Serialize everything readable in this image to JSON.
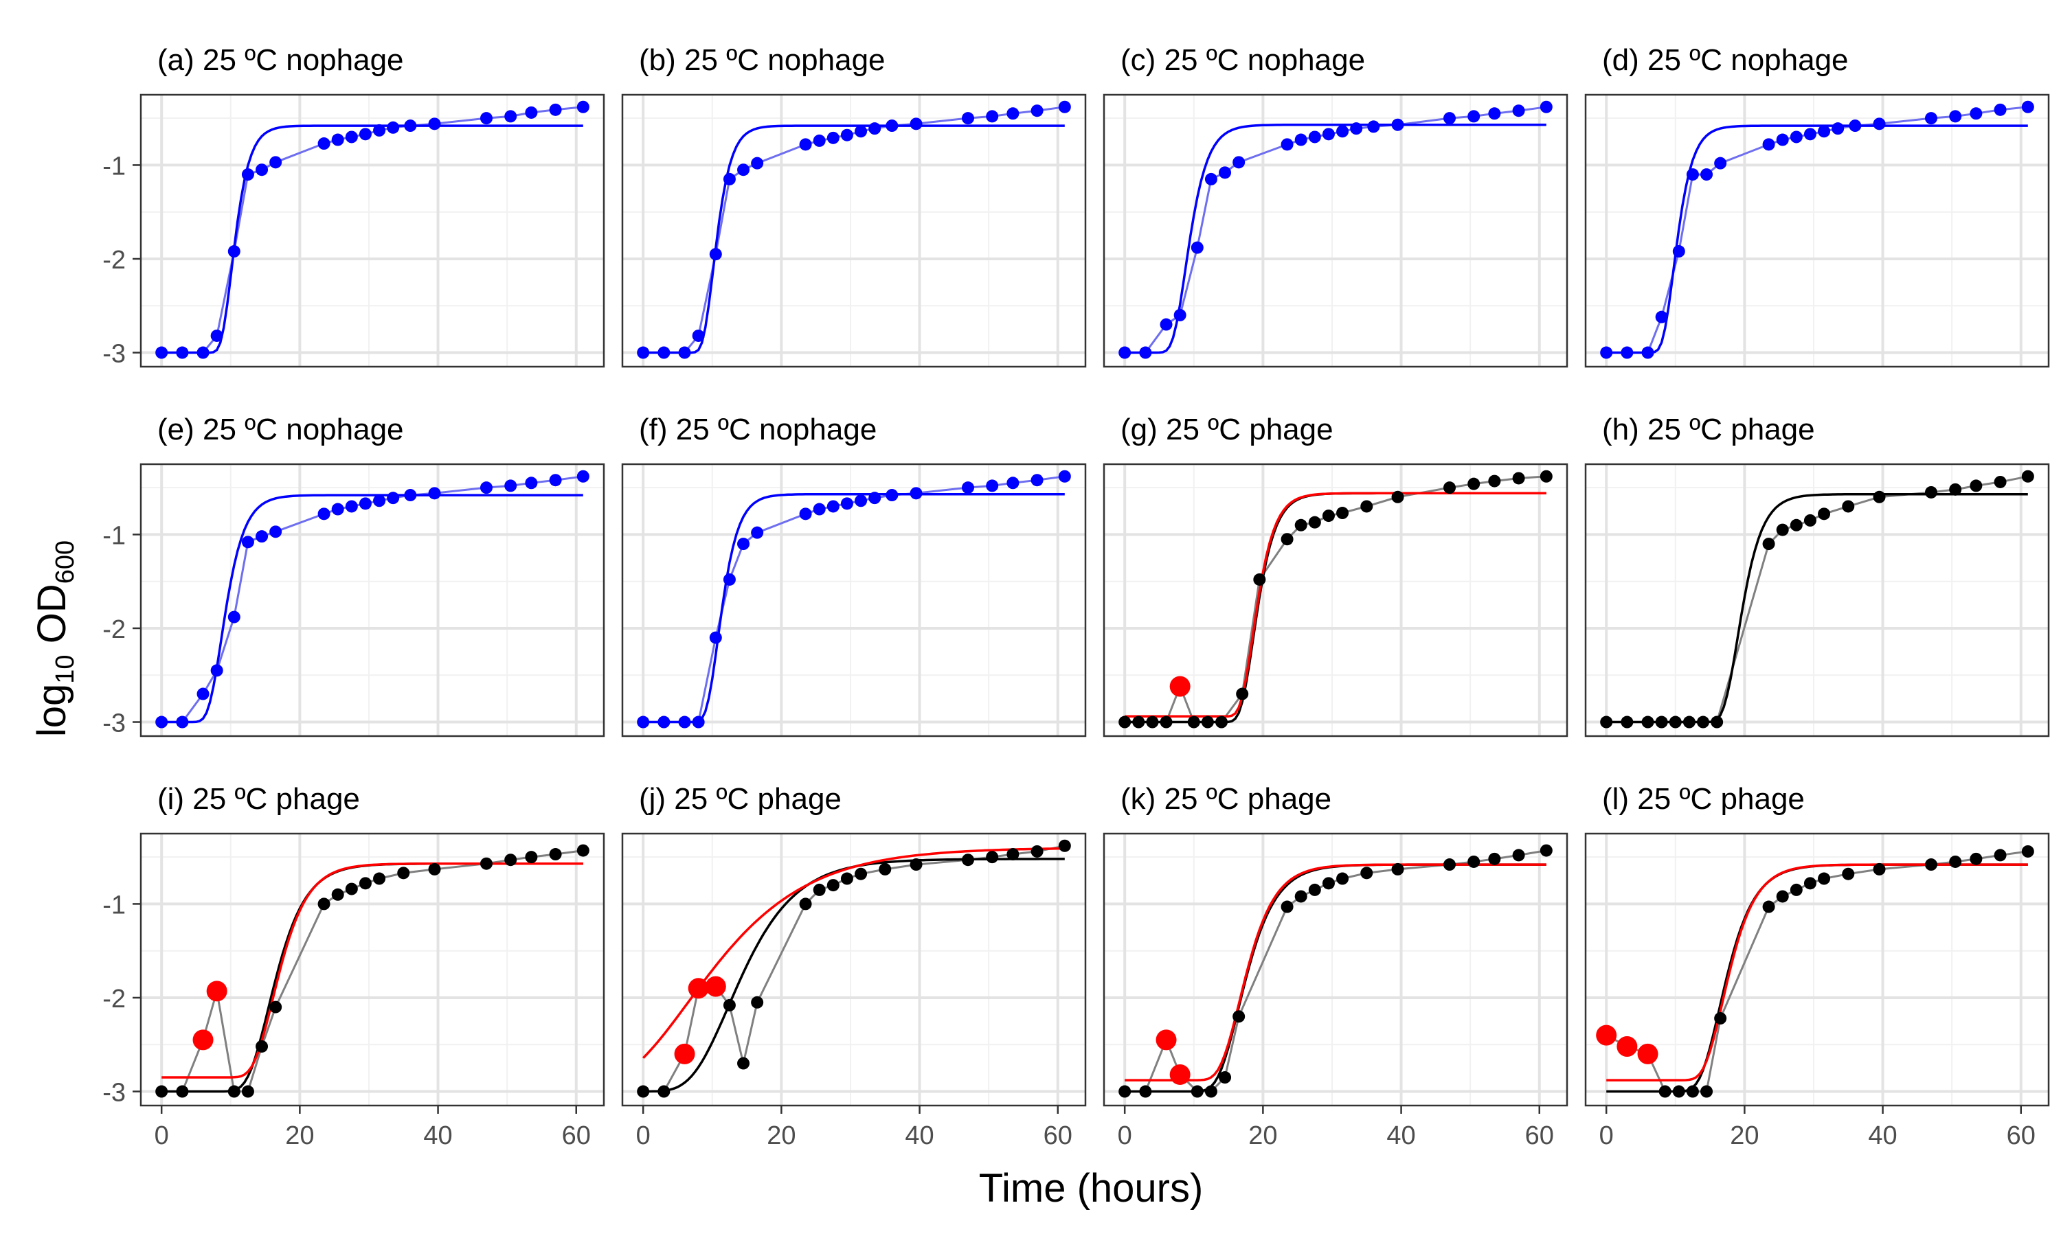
{
  "figure": {
    "xlabel": "Time (hours)",
    "ylabel_main": "log",
    "ylabel_sub": "10",
    "ylabel_tail": " OD",
    "ylabel_sub2": "600"
  },
  "colors": {
    "blue_points": "#0000ff",
    "blue_connector": "#6e6ef0",
    "black_points": "#000000",
    "grey_connector": "#808080",
    "red_outlier": "#ff0000",
    "red_fit": "#ff0000",
    "black_fit": "#000000",
    "grid_major": "#e3e3e3",
    "grid_minor": "#f1f1f1"
  },
  "chart_data": {
    "type": "scatter",
    "layout": "4 columns x 3 rows facet grid",
    "xlim": [
      -3,
      64
    ],
    "ylim": [
      -3.15,
      -0.25
    ],
    "xticks": [
      0,
      20,
      40,
      60
    ],
    "yticks": [
      -3,
      -2,
      -1
    ],
    "ytick_labels": [
      "-3",
      "-2",
      "-1"
    ],
    "grid": true,
    "panels": [
      {
        "title": "(a) 25 ºC nophage",
        "style": "nophage",
        "points": [
          [
            0,
            -3.0
          ],
          [
            3,
            -3.0
          ],
          [
            6,
            -3.0
          ],
          [
            8,
            -2.82
          ],
          [
            10.5,
            -1.92
          ],
          [
            12.5,
            -1.1
          ],
          [
            14.5,
            -1.05
          ],
          [
            16.5,
            -0.97
          ],
          [
            23.5,
            -0.77
          ],
          [
            25.5,
            -0.73
          ],
          [
            27.5,
            -0.7
          ],
          [
            29.5,
            -0.67
          ],
          [
            31.5,
            -0.63
          ],
          [
            33.5,
            -0.6
          ],
          [
            36,
            -0.58
          ],
          [
            39.5,
            -0.56
          ],
          [
            47,
            -0.5
          ],
          [
            50.5,
            -0.48
          ],
          [
            53.5,
            -0.44
          ],
          [
            57,
            -0.41
          ],
          [
            61,
            -0.38
          ]
        ],
        "outliers": [],
        "black_fit": null,
        "blue_fit": {
          "A": -0.58,
          "y0": -3.0,
          "mu": 0.62,
          "lag": 8.7
        }
      },
      {
        "title": "(b) 25 ºC nophage",
        "style": "nophage",
        "points": [
          [
            0,
            -3.0
          ],
          [
            3,
            -3.0
          ],
          [
            6,
            -3.0
          ],
          [
            8,
            -2.82
          ],
          [
            10.5,
            -1.95
          ],
          [
            12.5,
            -1.15
          ],
          [
            14.5,
            -1.05
          ],
          [
            16.5,
            -0.98
          ],
          [
            23.5,
            -0.78
          ],
          [
            25.5,
            -0.74
          ],
          [
            27.5,
            -0.71
          ],
          [
            29.5,
            -0.68
          ],
          [
            31.5,
            -0.64
          ],
          [
            33.5,
            -0.61
          ],
          [
            36,
            -0.58
          ],
          [
            39.5,
            -0.56
          ],
          [
            47,
            -0.5
          ],
          [
            50.5,
            -0.48
          ],
          [
            53.5,
            -0.45
          ],
          [
            57,
            -0.42
          ],
          [
            61,
            -0.38
          ]
        ],
        "outliers": [],
        "black_fit": null,
        "blue_fit": {
          "A": -0.58,
          "y0": -3.0,
          "mu": 0.62,
          "lag": 8.7
        }
      },
      {
        "title": "(c) 25 ºC nophage",
        "style": "nophage",
        "points": [
          [
            0,
            -3.0
          ],
          [
            3,
            -3.0
          ],
          [
            6,
            -2.7
          ],
          [
            8,
            -2.6
          ],
          [
            10.5,
            -1.88
          ],
          [
            12.5,
            -1.15
          ],
          [
            14.5,
            -1.08
          ],
          [
            16.5,
            -0.97
          ],
          [
            23.5,
            -0.78
          ],
          [
            25.5,
            -0.73
          ],
          [
            27.5,
            -0.7
          ],
          [
            29.5,
            -0.67
          ],
          [
            31.5,
            -0.64
          ],
          [
            33.5,
            -0.61
          ],
          [
            36,
            -0.59
          ],
          [
            39.5,
            -0.57
          ],
          [
            47,
            -0.5
          ],
          [
            50.5,
            -0.48
          ],
          [
            53.5,
            -0.45
          ],
          [
            57,
            -0.42
          ],
          [
            61,
            -0.38
          ]
        ],
        "outliers": [],
        "black_fit": null,
        "blue_fit": {
          "A": -0.57,
          "y0": -3.0,
          "mu": 0.5,
          "lag": 7.0
        }
      },
      {
        "title": "(d) 25 ºC nophage",
        "style": "nophage",
        "points": [
          [
            0,
            -3.0
          ],
          [
            3,
            -3.0
          ],
          [
            6,
            -3.0
          ],
          [
            8,
            -2.62
          ],
          [
            10.5,
            -1.92
          ],
          [
            12.5,
            -1.1
          ],
          [
            14.5,
            -1.1
          ],
          [
            16.5,
            -0.98
          ],
          [
            23.5,
            -0.78
          ],
          [
            25.5,
            -0.73
          ],
          [
            27.5,
            -0.7
          ],
          [
            29.5,
            -0.67
          ],
          [
            31.5,
            -0.64
          ],
          [
            33.5,
            -0.61
          ],
          [
            36,
            -0.58
          ],
          [
            39.5,
            -0.56
          ],
          [
            47,
            -0.5
          ],
          [
            50.5,
            -0.48
          ],
          [
            53.5,
            -0.45
          ],
          [
            57,
            -0.41
          ],
          [
            61,
            -0.38
          ]
        ],
        "outliers": [],
        "black_fit": null,
        "blue_fit": {
          "A": -0.58,
          "y0": -3.0,
          "mu": 0.58,
          "lag": 8.2
        }
      },
      {
        "title": "(e) 25 ºC nophage",
        "style": "nophage",
        "points": [
          [
            0,
            -3.0
          ],
          [
            3,
            -3.0
          ],
          [
            6,
            -2.7
          ],
          [
            8,
            -2.45
          ],
          [
            10.5,
            -1.88
          ],
          [
            12.5,
            -1.08
          ],
          [
            14.5,
            -1.02
          ],
          [
            16.5,
            -0.97
          ],
          [
            23.5,
            -0.78
          ],
          [
            25.5,
            -0.73
          ],
          [
            27.5,
            -0.7
          ],
          [
            29.5,
            -0.67
          ],
          [
            31.5,
            -0.64
          ],
          [
            33.5,
            -0.61
          ],
          [
            36,
            -0.58
          ],
          [
            39.5,
            -0.56
          ],
          [
            47,
            -0.5
          ],
          [
            50.5,
            -0.48
          ],
          [
            53.5,
            -0.45
          ],
          [
            57,
            -0.42
          ],
          [
            61,
            -0.38
          ]
        ],
        "outliers": [],
        "black_fit": null,
        "blue_fit": {
          "A": -0.58,
          "y0": -3.0,
          "mu": 0.48,
          "lag": 6.8
        }
      },
      {
        "title": "(f) 25 ºC nophage",
        "style": "nophage",
        "points": [
          [
            0,
            -3.0
          ],
          [
            3,
            -3.0
          ],
          [
            6,
            -3.0
          ],
          [
            8,
            -3.0
          ],
          [
            10.5,
            -2.1
          ],
          [
            12.5,
            -1.48
          ],
          [
            14.5,
            -1.1
          ],
          [
            16.5,
            -0.98
          ],
          [
            23.5,
            -0.78
          ],
          [
            25.5,
            -0.73
          ],
          [
            27.5,
            -0.7
          ],
          [
            29.5,
            -0.67
          ],
          [
            31.5,
            -0.64
          ],
          [
            33.5,
            -0.61
          ],
          [
            36,
            -0.58
          ],
          [
            39.5,
            -0.56
          ],
          [
            47,
            -0.5
          ],
          [
            50.5,
            -0.48
          ],
          [
            53.5,
            -0.45
          ],
          [
            57,
            -0.42
          ],
          [
            61,
            -0.38
          ]
        ],
        "outliers": [],
        "black_fit": null,
        "blue_fit": {
          "A": -0.57,
          "y0": -3.0,
          "mu": 0.55,
          "lag": 9.2
        }
      },
      {
        "title": "(g) 25 ºC phage",
        "style": "phage",
        "points": [
          [
            0,
            -3.0
          ],
          [
            2,
            -3.0
          ],
          [
            4,
            -3.0
          ],
          [
            6,
            -3.0
          ],
          [
            10,
            -3.0
          ],
          [
            12,
            -3.0
          ],
          [
            14,
            -3.0
          ],
          [
            17,
            -2.7
          ],
          [
            19.5,
            -1.48
          ],
          [
            23.5,
            -1.05
          ],
          [
            25.5,
            -0.9
          ],
          [
            27.5,
            -0.87
          ],
          [
            29.5,
            -0.8
          ],
          [
            31.5,
            -0.77
          ],
          [
            35,
            -0.7
          ],
          [
            39.5,
            -0.6
          ],
          [
            47,
            -0.5
          ],
          [
            50.5,
            -0.46
          ],
          [
            53.5,
            -0.43
          ],
          [
            57,
            -0.4
          ],
          [
            61,
            -0.38
          ]
        ],
        "outliers": [
          [
            8,
            -2.62
          ]
        ],
        "black_fit": {
          "A": -0.56,
          "y0": -3.0,
          "mu": 0.5,
          "lag": 16.8
        },
        "red_fit": {
          "A": -0.56,
          "y0": -2.94,
          "mu": 0.5,
          "lag": 16.8
        }
      },
      {
        "title": "(h) 25 ºC phage",
        "style": "phage",
        "points": [
          [
            0,
            -3.0
          ],
          [
            3,
            -3.0
          ],
          [
            6,
            -3.0
          ],
          [
            8,
            -3.0
          ],
          [
            10,
            -3.0
          ],
          [
            12,
            -3.0
          ],
          [
            14,
            -3.0
          ],
          [
            16,
            -3.0
          ],
          [
            23.5,
            -1.1
          ],
          [
            25.5,
            -0.95
          ],
          [
            27.5,
            -0.9
          ],
          [
            29.5,
            -0.85
          ],
          [
            31.5,
            -0.78
          ],
          [
            35,
            -0.7
          ],
          [
            39.5,
            -0.6
          ],
          [
            47,
            -0.55
          ],
          [
            50.5,
            -0.52
          ],
          [
            53.5,
            -0.48
          ],
          [
            57,
            -0.44
          ],
          [
            61,
            -0.38
          ]
        ],
        "outliers": [],
        "black_fit": {
          "A": -0.57,
          "y0": -3.0,
          "mu": 0.45,
          "lag": 17.0
        },
        "red_fit": null
      },
      {
        "title": "(i) 25 ºC phage",
        "style": "phage",
        "points": [
          [
            0,
            -3.0
          ],
          [
            3,
            -3.0
          ],
          [
            10.5,
            -3.0
          ],
          [
            12.5,
            -3.0
          ],
          [
            14.5,
            -2.52
          ],
          [
            16.5,
            -2.1
          ],
          [
            23.5,
            -1.0
          ],
          [
            25.5,
            -0.9
          ],
          [
            27.5,
            -0.84
          ],
          [
            29.5,
            -0.78
          ],
          [
            31.5,
            -0.73
          ],
          [
            35,
            -0.67
          ],
          [
            39.5,
            -0.63
          ],
          [
            47,
            -0.57
          ],
          [
            50.5,
            -0.53
          ],
          [
            53.5,
            -0.5
          ],
          [
            57,
            -0.47
          ],
          [
            61,
            -0.43
          ]
        ],
        "outliers": [
          [
            6,
            -2.45
          ],
          [
            8,
            -1.93
          ]
        ],
        "black_fit": {
          "A": -0.57,
          "y0": -3.0,
          "mu": 0.3,
          "lag": 12.5
        },
        "red_fit": {
          "A": -0.57,
          "y0": -2.85,
          "mu": 0.3,
          "lag": 13.3
        }
      },
      {
        "title": "(j) 25 ºC phage",
        "style": "phage",
        "points": [
          [
            0,
            -3.0
          ],
          [
            3,
            -3.0
          ],
          [
            12.5,
            -2.08
          ],
          [
            14.5,
            -2.7
          ],
          [
            16.5,
            -2.05
          ],
          [
            23.5,
            -1.0
          ],
          [
            25.5,
            -0.85
          ],
          [
            27.5,
            -0.8
          ],
          [
            29.5,
            -0.73
          ],
          [
            31.5,
            -0.68
          ],
          [
            35,
            -0.63
          ],
          [
            39.5,
            -0.58
          ],
          [
            47,
            -0.53
          ],
          [
            50.5,
            -0.5
          ],
          [
            53.5,
            -0.47
          ],
          [
            57,
            -0.44
          ],
          [
            61,
            -0.38
          ]
        ],
        "outliers": [
          [
            6,
            -2.6
          ],
          [
            8,
            -1.9
          ],
          [
            10.5,
            -1.88
          ]
        ],
        "black_fit": {
          "A": -0.52,
          "y0": -3.0,
          "mu": 0.17,
          "lag": 7.0
        },
        "red_fit": {
          "A": -0.4,
          "y0": -3.0,
          "mu": 0.1,
          "lag": -3.0
        }
      },
      {
        "title": "(k) 25 ºC phage",
        "style": "phage",
        "points": [
          [
            0,
            -3.0
          ],
          [
            3,
            -3.0
          ],
          [
            10.5,
            -3.0
          ],
          [
            12.5,
            -3.0
          ],
          [
            14.5,
            -2.85
          ],
          [
            16.5,
            -2.2
          ],
          [
            23.5,
            -1.03
          ],
          [
            25.5,
            -0.92
          ],
          [
            27.5,
            -0.85
          ],
          [
            29.5,
            -0.78
          ],
          [
            31.5,
            -0.73
          ],
          [
            35,
            -0.67
          ],
          [
            39.5,
            -0.63
          ],
          [
            47,
            -0.58
          ],
          [
            50.5,
            -0.55
          ],
          [
            53.5,
            -0.52
          ],
          [
            57,
            -0.48
          ],
          [
            61,
            -0.43
          ]
        ],
        "outliers": [
          [
            6,
            -2.45
          ],
          [
            8,
            -2.82
          ]
        ],
        "black_fit": {
          "A": -0.58,
          "y0": -3.0,
          "mu": 0.3,
          "lag": 13.5
        },
        "red_fit": {
          "A": -0.58,
          "y0": -2.88,
          "mu": 0.3,
          "lag": 13.8
        }
      },
      {
        "title": "(l) 25 ºC phage",
        "style": "phage",
        "points": [
          [
            8.5,
            -3.0
          ],
          [
            10.5,
            -3.0
          ],
          [
            12.5,
            -3.0
          ],
          [
            14.5,
            -3.0
          ],
          [
            16.5,
            -2.22
          ],
          [
            23.5,
            -1.03
          ],
          [
            25.5,
            -0.92
          ],
          [
            27.5,
            -0.85
          ],
          [
            29.5,
            -0.78
          ],
          [
            31.5,
            -0.73
          ],
          [
            35,
            -0.68
          ],
          [
            39.5,
            -0.63
          ],
          [
            47,
            -0.58
          ],
          [
            50.5,
            -0.55
          ],
          [
            53.5,
            -0.52
          ],
          [
            57,
            -0.48
          ],
          [
            61,
            -0.44
          ]
        ],
        "outliers": [
          [
            0,
            -2.4
          ],
          [
            3,
            -2.52
          ],
          [
            6,
            -2.6
          ]
        ],
        "black_fit": {
          "A": -0.58,
          "y0": -3.0,
          "mu": 0.32,
          "lag": 13.6
        },
        "red_fit": {
          "A": -0.58,
          "y0": -2.88,
          "mu": 0.32,
          "lag": 14.2
        }
      }
    ]
  }
}
